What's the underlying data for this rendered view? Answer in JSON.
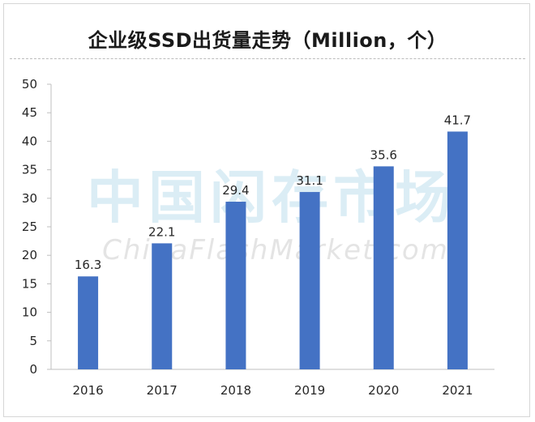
{
  "chart_data": {
    "type": "bar",
    "title": "企业级SSD出货量走势（Million，个）",
    "categories": [
      "2016",
      "2017",
      "2018",
      "2019",
      "2020",
      "2021"
    ],
    "values": [
      16.3,
      22.1,
      29.4,
      31.1,
      35.6,
      41.7
    ],
    "data_labels": [
      "16.3",
      "22.1",
      "29.4",
      "31.1",
      "35.6",
      "41.7"
    ],
    "xlabel": "",
    "ylabel": "",
    "ylim": [
      0,
      50
    ],
    "yticks": [
      "0",
      "5",
      "10",
      "15",
      "20",
      "25",
      "30",
      "35",
      "40",
      "45",
      "50"
    ],
    "grid": false,
    "bar_color": "#4472c4"
  },
  "watermark": {
    "cn": "中国闪存市场",
    "en": "ChinaFlashMarket.com"
  }
}
